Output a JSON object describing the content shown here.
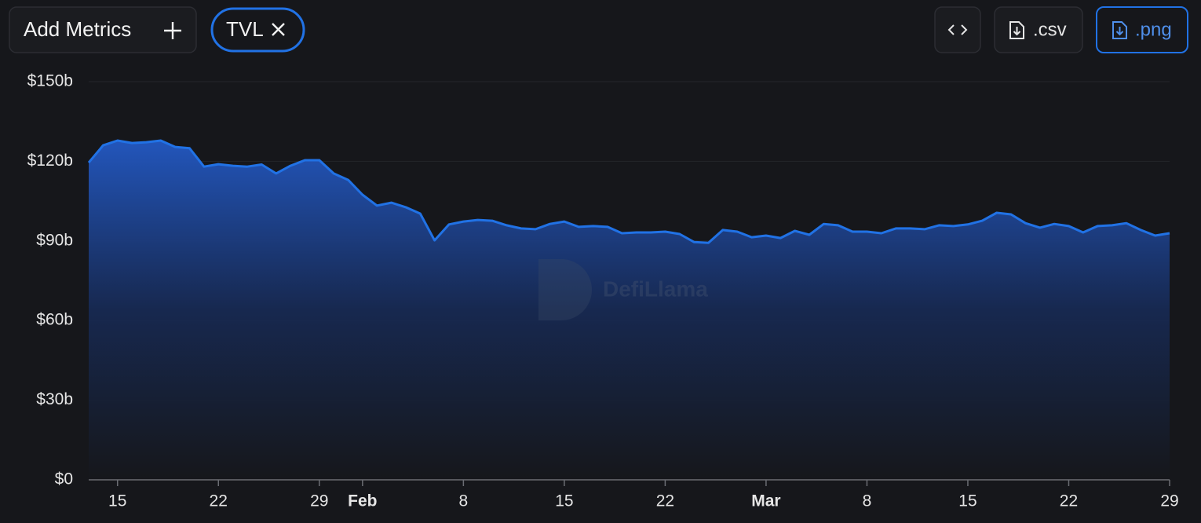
{
  "toolbar": {
    "add_metrics": "Add Metrics",
    "csv": ".csv",
    "png": ".png"
  },
  "watermark": "DefiLlama",
  "chart_data": {
    "type": "area",
    "x": [
      "Jan 13",
      "Jan 14",
      "Jan 15",
      "Jan 16",
      "Jan 17",
      "Jan 18",
      "Jan 19",
      "Jan 20",
      "Jan 21",
      "Jan 22",
      "Jan 23",
      "Jan 24",
      "Jan 25",
      "Jan 26",
      "Jan 27",
      "Jan 28",
      "Jan 29",
      "Jan 30",
      "Jan 31",
      "Feb 1",
      "Feb 2",
      "Feb 3",
      "Feb 4",
      "Feb 5",
      "Feb 6",
      "Feb 7",
      "Feb 8",
      "Feb 9",
      "Feb 10",
      "Feb 11",
      "Feb 12",
      "Feb 13",
      "Feb 14",
      "Feb 15",
      "Feb 16",
      "Feb 17",
      "Feb 18",
      "Feb 19",
      "Feb 20",
      "Feb 21",
      "Feb 22",
      "Feb 23",
      "Feb 24",
      "Feb 25",
      "Feb 26",
      "Feb 27",
      "Feb 28",
      "Mar 1",
      "Mar 2",
      "Mar 3",
      "Mar 4",
      "Mar 5",
      "Mar 6",
      "Mar 7",
      "Mar 8",
      "Mar 9",
      "Mar 10",
      "Mar 11",
      "Mar 12",
      "Mar 13",
      "Mar 14",
      "Mar 15",
      "Mar 16",
      "Mar 17",
      "Mar 18",
      "Mar 19",
      "Mar 20",
      "Mar 21",
      "Mar 22",
      "Mar 23",
      "Mar 24",
      "Mar 25",
      "Mar 26",
      "Mar 27",
      "Mar 28",
      "Mar 29"
    ],
    "series": [
      {
        "name": "TVL",
        "color": "#2172e5",
        "values": [
          119.5,
          126,
          127.8,
          126.9,
          127.2,
          127.8,
          125.4,
          124.9,
          118,
          118.9,
          118.3,
          118,
          118.8,
          115.4,
          118.3,
          120.4,
          120.4,
          115.4,
          113,
          107.4,
          103.3,
          104.4,
          102.7,
          100.3,
          90.2,
          96.2,
          97.3,
          97.9,
          97.6,
          95.9,
          94.7,
          94.4,
          96.4,
          97.3,
          95.3,
          95.6,
          95.3,
          92.9,
          93.2,
          93.2,
          93.5,
          92.6,
          89.6,
          89.3,
          94.1,
          93.5,
          91.4,
          92,
          91.1,
          93.8,
          92.3,
          96.4,
          95.9,
          93.5,
          93.5,
          92.9,
          94.7,
          94.7,
          94.4,
          95.9,
          95.6,
          96.2,
          97.6,
          100.6,
          100,
          96.7,
          95,
          96.4,
          95.6,
          93.2,
          95.6,
          95.9,
          96.7,
          94.1,
          92,
          92.9
        ]
      }
    ],
    "ylim": [
      0,
      150
    ],
    "yticks": [
      {
        "value": 0,
        "label": "$0"
      },
      {
        "value": 30,
        "label": "$30b"
      },
      {
        "value": 60,
        "label": "$60b"
      },
      {
        "value": 90,
        "label": "$90b"
      },
      {
        "value": 120,
        "label": "$120b"
      },
      {
        "value": 150,
        "label": "$150b"
      }
    ],
    "xticks": [
      {
        "value": "Jan 15",
        "label": "15"
      },
      {
        "value": "Jan 22",
        "label": "22"
      },
      {
        "value": "Jan 29",
        "label": "29"
      },
      {
        "value": "Feb 1",
        "label": "Feb"
      },
      {
        "value": "Feb 8",
        "label": "8"
      },
      {
        "value": "Feb 15",
        "label": "15"
      },
      {
        "value": "Feb 22",
        "label": "22"
      },
      {
        "value": "Mar 1",
        "label": "Mar"
      },
      {
        "value": "Mar 8",
        "label": "8"
      },
      {
        "value": "Mar 15",
        "label": "15"
      },
      {
        "value": "Mar 22",
        "label": "22"
      },
      {
        "value": "Mar 29",
        "label": "29"
      }
    ],
    "grid": true
  }
}
